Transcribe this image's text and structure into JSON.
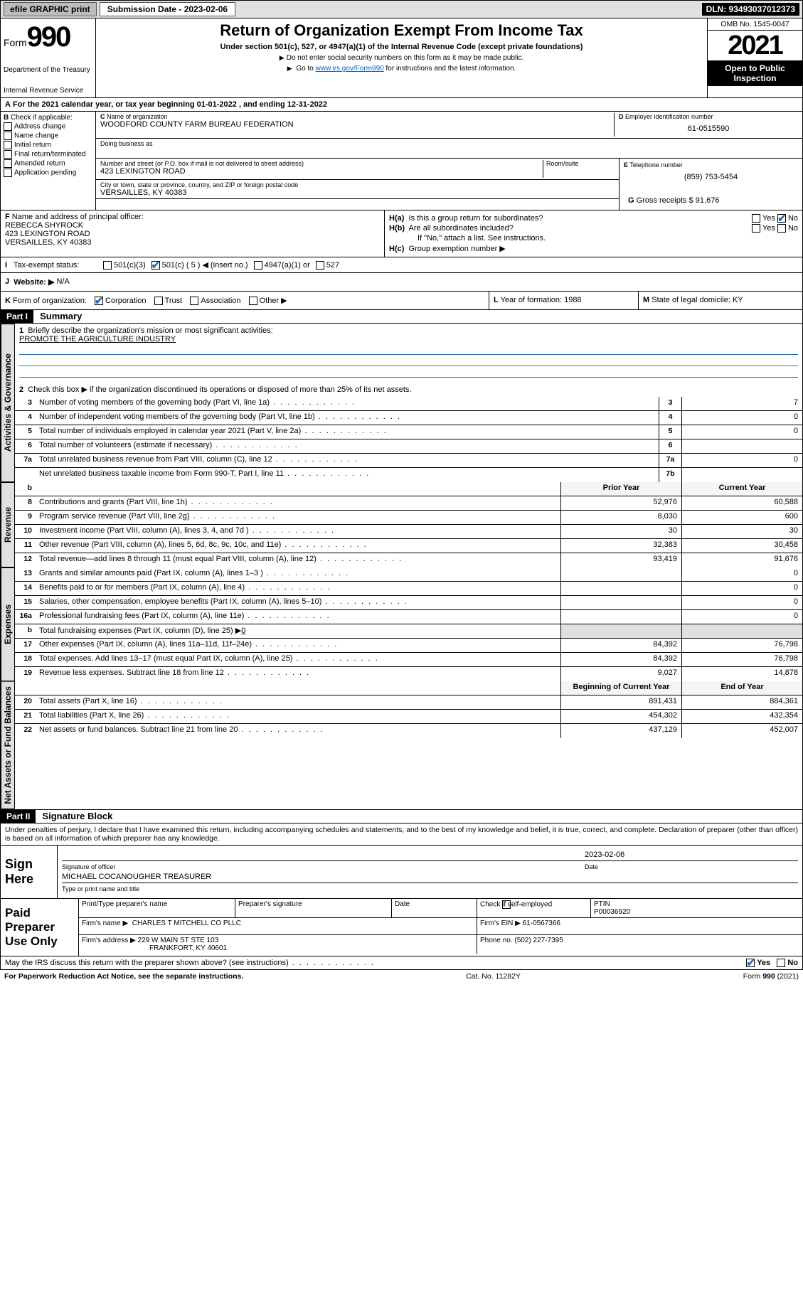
{
  "topbar": {
    "efile": "efile GRAPHIC print",
    "sub_label": "Submission Date - 2023-02-06",
    "dln": "DLN: 93493037012373"
  },
  "header": {
    "form_word": "Form",
    "form_num": "990",
    "title": "Return of Organization Exempt From Income Tax",
    "subtitle": "Under section 501(c), 527, or 4947(a)(1) of the Internal Revenue Code (except private foundations)",
    "note1": "Do not enter social security numbers on this form as it may be made public.",
    "note2_pre": "Go to ",
    "note2_link": "www.irs.gov/Form990",
    "note2_post": " for instructions and the latest information.",
    "dept": "Department of the Treasury",
    "irs": "Internal Revenue Service",
    "omb": "OMB No. 1545-0047",
    "year": "2021",
    "open": "Open to Public Inspection"
  },
  "A": {
    "text": "For the 2021 calendar year, or tax year beginning 01-01-2022   , and ending 12-31-2022"
  },
  "B": {
    "label": "Check if applicable:",
    "opts": [
      "Address change",
      "Name change",
      "Initial return",
      "Final return/terminated",
      "Amended return",
      "Application pending"
    ]
  },
  "C": {
    "name_label": "Name of organization",
    "name": "WOODFORD COUNTY FARM BUREAU FEDERATION",
    "dba_label": "Doing business as",
    "street_label": "Number and street (or P.O. box if mail is not delivered to street address)",
    "room_label": "Room/suite",
    "street": "423 LEXINGTON ROAD",
    "city_label": "City or town, state or province, country, and ZIP or foreign postal code",
    "city": "VERSAILLES, KY  40383"
  },
  "D": {
    "label": "Employer identification number",
    "value": "61-0515590"
  },
  "E": {
    "label": "Telephone number",
    "value": "(859) 753-5454"
  },
  "G": {
    "label": "Gross receipts $",
    "value": "91,676"
  },
  "F": {
    "label": "Name and address of principal officer:",
    "name": "REBECCA SHYROCK",
    "street": "423 LEXINGTON ROAD",
    "city": "VERSAILLES, KY  40383"
  },
  "H": {
    "a": "Is this a group return for subordinates?",
    "b": "Are all subordinates included?",
    "ifno": "If \"No,\" attach a list. See instructions.",
    "c": "Group exemption number ▶",
    "yes": "Yes",
    "no": "No"
  },
  "I": {
    "label": "Tax-exempt status:",
    "o1": "501(c)(3)",
    "o2": "501(c) ( 5 ) ◀ (insert no.)",
    "o3": "4947(a)(1) or",
    "o4": "527"
  },
  "J": {
    "label": "Website: ▶",
    "value": "N/A"
  },
  "K": {
    "label": "Form of organization:",
    "o1": "Corporation",
    "o2": "Trust",
    "o3": "Association",
    "o4": "Other ▶"
  },
  "L": {
    "label": "Year of formation:",
    "value": "1988"
  },
  "M": {
    "label": "State of legal domicile:",
    "value": "KY"
  },
  "part1": {
    "tag": "Part I",
    "title": "Summary"
  },
  "gov": {
    "vtab": "Activities & Governance",
    "l1": "Briefly describe the organization's mission or most significant activities:",
    "l1v": "PROMOTE THE AGRICULTURE INDUSTRY",
    "l2": "Check this box ▶        if the organization discontinued its operations or disposed of more than 25% of its net assets.",
    "rows": [
      {
        "n": "3",
        "d": "Number of voting members of the governing body (Part VI, line 1a)",
        "b": "3",
        "v": "7"
      },
      {
        "n": "4",
        "d": "Number of independent voting members of the governing body (Part VI, line 1b)",
        "b": "4",
        "v": "0"
      },
      {
        "n": "5",
        "d": "Total number of individuals employed in calendar year 2021 (Part V, line 2a)",
        "b": "5",
        "v": "0"
      },
      {
        "n": "6",
        "d": "Total number of volunteers (estimate if necessary)",
        "b": "6",
        "v": ""
      },
      {
        "n": "7a",
        "d": "Total unrelated business revenue from Part VIII, column (C), line 12",
        "b": "7a",
        "v": "0"
      },
      {
        "n": "",
        "d": "Net unrelated business taxable income from Form 990-T, Part I, line 11",
        "b": "7b",
        "v": ""
      }
    ]
  },
  "rev": {
    "vtab": "Revenue",
    "hdr_b": "b",
    "hdr_py": "Prior Year",
    "hdr_cy": "Current Year",
    "rows": [
      {
        "n": "8",
        "d": "Contributions and grants (Part VIII, line 1h)",
        "py": "52,976",
        "cy": "60,588"
      },
      {
        "n": "9",
        "d": "Program service revenue (Part VIII, line 2g)",
        "py": "8,030",
        "cy": "600"
      },
      {
        "n": "10",
        "d": "Investment income (Part VIII, column (A), lines 3, 4, and 7d )",
        "py": "30",
        "cy": "30"
      },
      {
        "n": "11",
        "d": "Other revenue (Part VIII, column (A), lines 5, 6d, 8c, 9c, 10c, and 11e)",
        "py": "32,383",
        "cy": "30,458"
      },
      {
        "n": "12",
        "d": "Total revenue—add lines 8 through 11 (must equal Part VIII, column (A), line 12)",
        "py": "93,419",
        "cy": "91,676"
      }
    ]
  },
  "exp": {
    "vtab": "Expenses",
    "rows": [
      {
        "n": "13",
        "d": "Grants and similar amounts paid (Part IX, column (A), lines 1–3 )",
        "py": "",
        "cy": "0"
      },
      {
        "n": "14",
        "d": "Benefits paid to or for members (Part IX, column (A), line 4)",
        "py": "",
        "cy": "0"
      },
      {
        "n": "15",
        "d": "Salaries, other compensation, employee benefits (Part IX, column (A), lines 5–10)",
        "py": "",
        "cy": "0"
      },
      {
        "n": "16a",
        "d": "Professional fundraising fees (Part IX, column (A), line 11e)",
        "py": "",
        "cy": "0"
      }
    ],
    "l16b_pre": "Total fundraising expenses (Part IX, column (D), line 25) ▶",
    "l16b_val": "0",
    "rows2": [
      {
        "n": "17",
        "d": "Other expenses (Part IX, column (A), lines 11a–11d, 11f–24e)",
        "py": "84,392",
        "cy": "76,798"
      },
      {
        "n": "18",
        "d": "Total expenses. Add lines 13–17 (must equal Part IX, column (A), line 25)",
        "py": "84,392",
        "cy": "76,798"
      },
      {
        "n": "19",
        "d": "Revenue less expenses. Subtract line 18 from line 12",
        "py": "9,027",
        "cy": "14,878"
      }
    ]
  },
  "net": {
    "vtab": "Net Assets or Fund Balances",
    "hdr_b": "Beginning of Current Year",
    "hdr_e": "End of Year",
    "rows": [
      {
        "n": "20",
        "d": "Total assets (Part X, line 16)",
        "py": "891,431",
        "cy": "884,361"
      },
      {
        "n": "21",
        "d": "Total liabilities (Part X, line 26)",
        "py": "454,302",
        "cy": "432,354"
      },
      {
        "n": "22",
        "d": "Net assets or fund balances. Subtract line 21 from line 20",
        "py": "437,129",
        "cy": "452,007"
      }
    ]
  },
  "part2": {
    "tag": "Part II",
    "title": "Signature Block"
  },
  "sig": {
    "intro": "Under penalties of perjury, I declare that I have examined this return, including accompanying schedules and statements, and to the best of my knowledge and belief, it is true, correct, and complete. Declaration of preparer (other than officer) is based on all information of which preparer has any knowledge.",
    "sign_here": "Sign Here",
    "sig_officer": "Signature of officer",
    "date": "Date",
    "date_v": "2023-02-06",
    "name_title": "MICHAEL COCANOUGHER  Treasurer",
    "type_name": "Type or print name and title"
  },
  "prep": {
    "label": "Paid Preparer Use Only",
    "h1": "Print/Type preparer's name",
    "h2": "Preparer's signature",
    "h3": "Date",
    "h4_check": "Check          if self-employed",
    "h5": "PTIN",
    "ptin": "P00036920",
    "firm_name_l": "Firm's name   ▶",
    "firm_name": "CHARLES T MITCHELL CO PLLC",
    "firm_ein_l": "Firm's EIN ▶",
    "firm_ein": "61-0567366",
    "firm_addr_l": "Firm's address ▶",
    "firm_addr1": "229 W MAIN ST STE 103",
    "firm_addr2": "FRANKFORT, KY  40601",
    "phone_l": "Phone no.",
    "phone": "(502) 227-7395"
  },
  "discuss": {
    "text": "May the IRS discuss this return with the preparer shown above? (see instructions)",
    "yes": "Yes",
    "no": "No"
  },
  "footer": {
    "left": "For Paperwork Reduction Act Notice, see the separate instructions.",
    "mid": "Cat. No. 11282Y",
    "right_pre": "Form ",
    "right_b": "990",
    "right_post": " (2021)"
  }
}
